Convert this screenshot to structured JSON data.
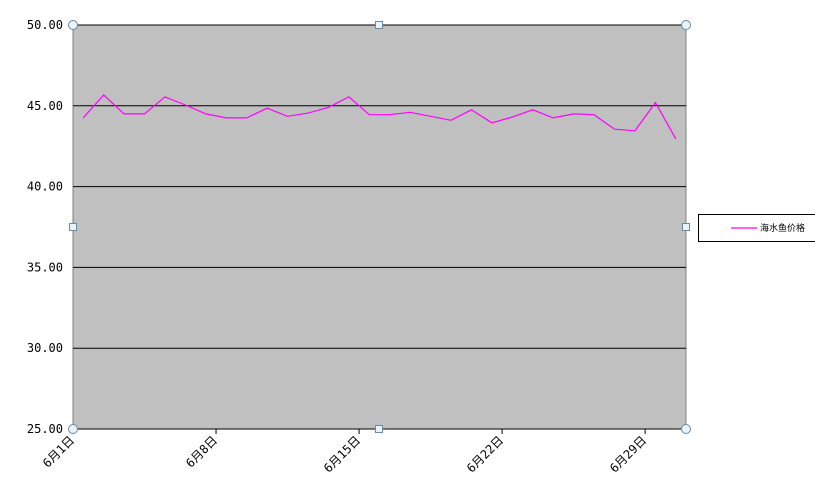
{
  "chart_data": {
    "type": "line",
    "categories": [
      "6月1日",
      null,
      null,
      null,
      null,
      null,
      null,
      "6月8日",
      null,
      null,
      null,
      null,
      null,
      null,
      "6月15日",
      null,
      null,
      null,
      null,
      null,
      null,
      "6月22日",
      null,
      null,
      null,
      null,
      null,
      null,
      "6月29日",
      null
    ],
    "series": [
      {
        "name": "海水鱼价格",
        "color": "#ff00ff",
        "values": [
          44.25,
          45.67,
          44.5,
          44.5,
          45.55,
          45.05,
          44.5,
          44.25,
          44.25,
          44.85,
          44.35,
          44.55,
          44.9,
          45.55,
          44.45,
          44.45,
          44.6,
          44.35,
          44.1,
          44.75,
          43.95,
          44.3,
          44.75,
          44.25,
          44.5,
          44.45,
          43.55,
          43.45,
          45.2,
          42.95
        ]
      }
    ],
    "ylim": [
      25,
      50
    ],
    "yticks": [
      {
        "value": 25,
        "label": "25.00"
      },
      {
        "value": 30,
        "label": "30.00"
      },
      {
        "value": 35,
        "label": "35.00"
      },
      {
        "value": 40,
        "label": "40.00"
      },
      {
        "value": 45,
        "label": "45.00"
      },
      {
        "value": 50,
        "label": "50.00"
      }
    ],
    "grid": true,
    "plot_background": "#c0c0c0",
    "legend": "right"
  }
}
